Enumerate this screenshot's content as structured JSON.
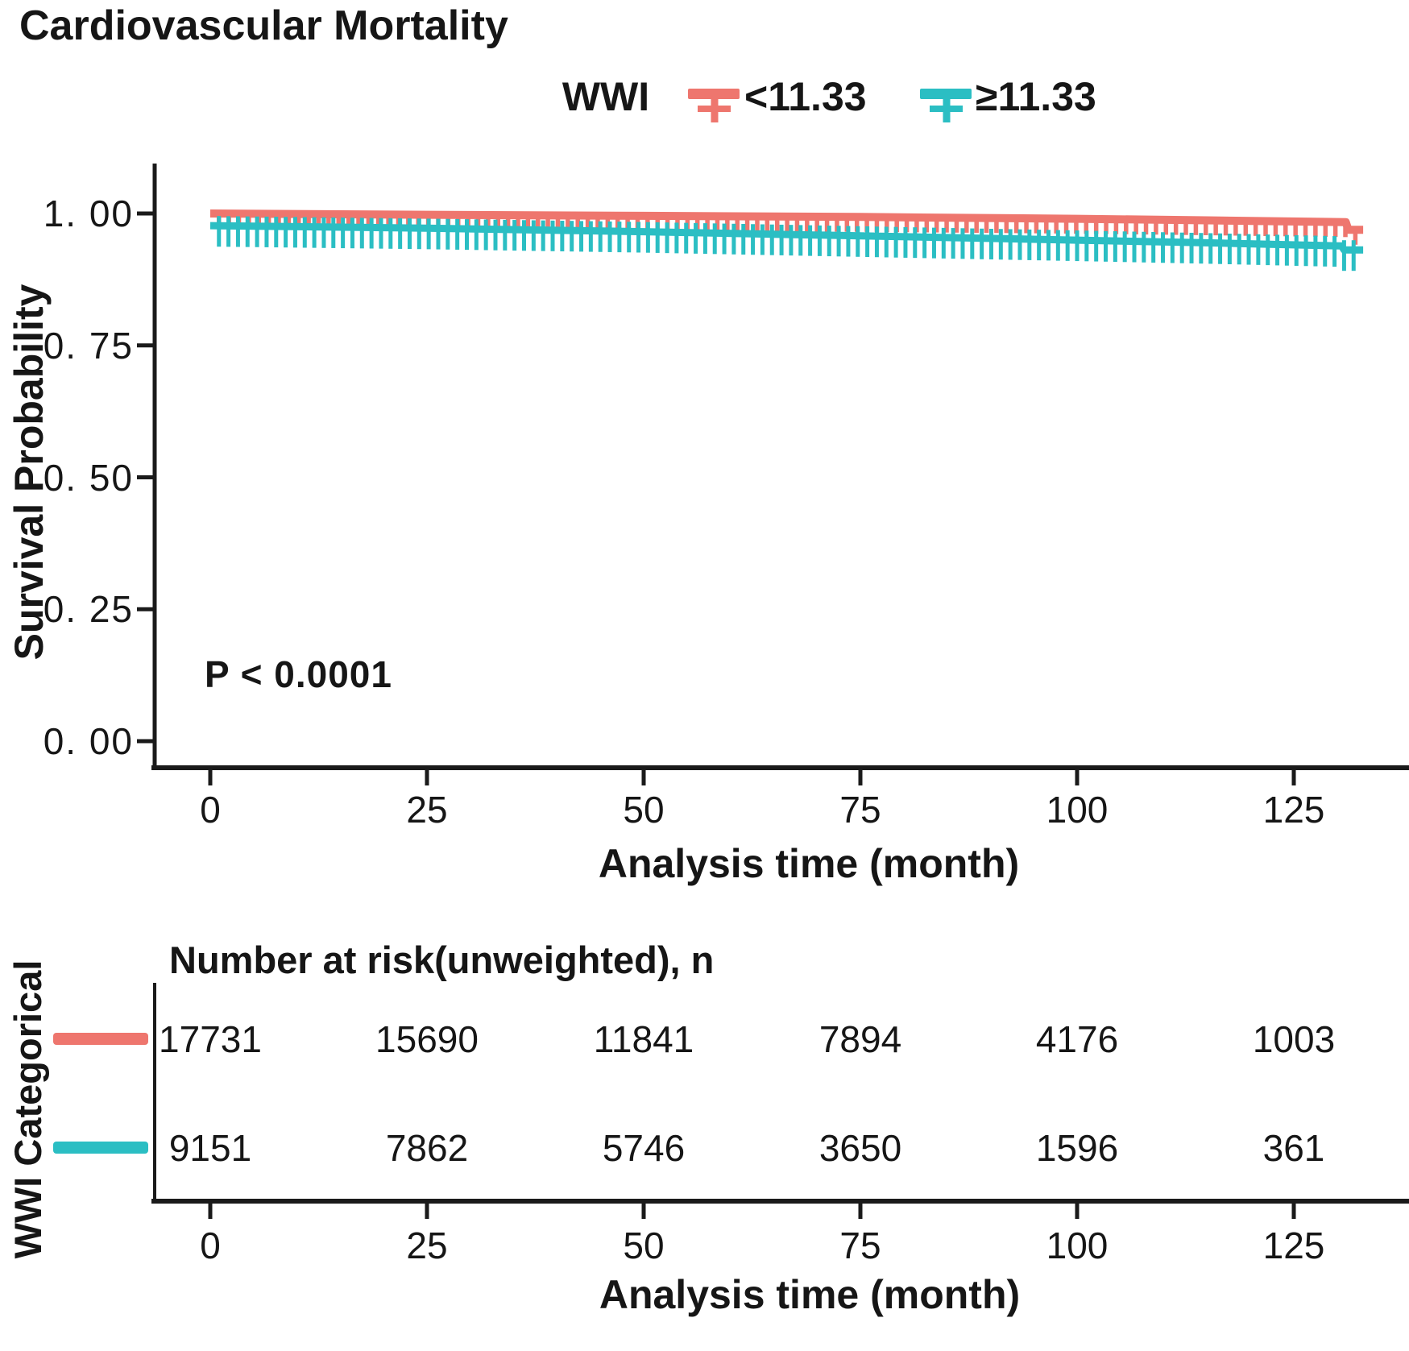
{
  "title": "Cardiovascular Mortality",
  "legend": {
    "label": "WWI",
    "items": [
      {
        "label": "<11.33",
        "color": "#EE766E"
      },
      {
        "label": "≥11.33",
        "color": "#2BBEC3"
      }
    ]
  },
  "plot": {
    "ylabel": "Survival Probability",
    "xlabel": "Analysis time (month)",
    "p_value": "P < 0.0001",
    "y_tick_labels": [
      "1. 00",
      "0. 75",
      "0. 50",
      "0. 25",
      "0. 00"
    ],
    "x_tick_labels": [
      "0",
      "25",
      "50",
      "75",
      "100",
      "125"
    ]
  },
  "risk_table": {
    "side_label": "WWI Categorical",
    "title": "Number at risk(unweighted), n",
    "xlabel": "Analysis time (month)",
    "x_tick_labels": [
      "0",
      "25",
      "50",
      "75",
      "100",
      "125"
    ],
    "rows": [
      {
        "group": "<11.33",
        "color": "#EE766E",
        "counts": [
          "17731",
          "15690",
          "11841",
          "7894",
          "4176",
          "1003"
        ]
      },
      {
        "group": "≥11.33",
        "color": "#2BBEC3",
        "counts": [
          "9151",
          "7862",
          "5746",
          "3650",
          "1596",
          "361"
        ]
      }
    ]
  },
  "chart_data": {
    "type": "line",
    "subtype": "kaplan-meier-survival",
    "title": "Cardiovascular Mortality",
    "xlabel": "Analysis time (month)",
    "ylabel": "Survival Probability",
    "xlim": [
      0,
      136
    ],
    "ylim": [
      0,
      1.0
    ],
    "x_ticks": [
      0,
      25,
      50,
      75,
      100,
      125
    ],
    "y_ticks": [
      1.0,
      0.75,
      0.5,
      0.25,
      0.0
    ],
    "grid": false,
    "legend_title": "WWI",
    "legend_position": "top",
    "annotation": "P < 0.0001",
    "series": [
      {
        "name": "<11.33",
        "color": "#EE766E",
        "x": [
          0,
          25,
          50,
          75,
          100,
          115,
          131,
          131.3,
          133
        ],
        "y": [
          1.0,
          0.9975,
          0.9955,
          0.9935,
          0.99,
          0.987,
          0.9835,
          0.969,
          0.969
        ],
        "censor_marks": {
          "from": 1,
          "to": 132.5,
          "step": 1.15,
          "size": "small"
        }
      },
      {
        "name": "≥11.33",
        "color": "#2BBEC3",
        "x": [
          0,
          25,
          50,
          75,
          100,
          115,
          130.5,
          130.8,
          133
        ],
        "y": [
          0.977,
          0.972,
          0.9655,
          0.9575,
          0.9495,
          0.9445,
          0.9385,
          0.931,
          0.931
        ],
        "censor_marks": {
          "from": 1,
          "to": 132,
          "step": 1.1,
          "size": "large"
        }
      }
    ],
    "number_at_risk": {
      "title": "Number at risk(unweighted), n",
      "times": [
        0,
        25,
        50,
        75,
        100,
        125
      ],
      "rows": [
        {
          "name": "<11.33",
          "counts": [
            17731,
            15690,
            11841,
            7894,
            4176,
            1003
          ]
        },
        {
          "name": "≥11.33",
          "counts": [
            9151,
            7862,
            5746,
            3650,
            1596,
            361
          ]
        }
      ]
    }
  }
}
